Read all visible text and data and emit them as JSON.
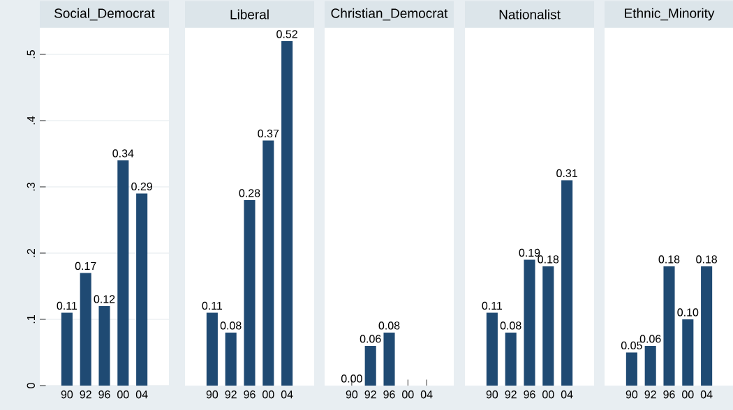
{
  "chart_data": [
    {
      "type": "bar",
      "title": "Social_Democrat",
      "categories": [
        "90",
        "92",
        "96",
        "00",
        "04"
      ],
      "values": [
        0.11,
        0.17,
        0.12,
        0.34,
        0.29
      ],
      "value_labels": [
        "0.11",
        "0.17",
        "0.12",
        "0.34",
        "0.29"
      ],
      "color": "#1f4a73",
      "ylim": [
        0,
        0.54
      ],
      "yticks": [
        0,
        {
          "value": 0.1,
          "label": ".1"
        },
        {
          "value": 0.2,
          "label": ".2"
        },
        {
          "value": 0.3,
          "label": ".3"
        },
        {
          "value": 0.4,
          "label": ".4"
        },
        {
          "value": 0.5,
          "label": ".5"
        }
      ],
      "grid": "y"
    },
    {
      "type": "bar",
      "title": "Liberal",
      "categories": [
        "90",
        "92",
        "96",
        "00",
        "04"
      ],
      "values": [
        0.11,
        0.08,
        0.28,
        0.37,
        0.52
      ],
      "value_labels": [
        "0.11",
        "0.08",
        "0.28",
        "0.37",
        "0.52"
      ],
      "color": "#1f4a73",
      "ylim": [
        0,
        0.54
      ],
      "yticks": [
        {
          "value": 0,
          "label": null
        },
        {
          "value": 0.1,
          "label": null
        },
        {
          "value": 0.2,
          "label": null
        },
        {
          "value": 0.3,
          "label": null
        },
        {
          "value": 0.4,
          "label": null
        },
        {
          "value": 0.5,
          "label": null
        }
      ],
      "grid": "y",
      "tick_labels": "x"
    },
    {
      "type": "bar",
      "title": "Christian_Democrat",
      "categories": [
        "90",
        "92",
        "96",
        "00",
        "04"
      ],
      "values": [
        0,
        0.06,
        0.08,
        null,
        null
      ],
      "value_labels": [
        "0.00",
        "0.06",
        "0.08",
        null,
        null
      ],
      "color": "#1f4a73",
      "ylim": [
        0,
        0.54
      ],
      "yticks": [
        {
          "value": 0,
          "label": null
        },
        {
          "value": 0.1,
          "label": null
        },
        {
          "value": 0.2,
          "label": null
        },
        {
          "value": 0.3,
          "label": null
        },
        {
          "value": 0.4,
          "label": null
        },
        {
          "value": 0.5,
          "label": null
        }
      ],
      "grid": "y",
      "tick_labels": "x"
    },
    {
      "type": "bar",
      "title": "Nationalist",
      "categories": [
        "90",
        "92",
        "96",
        "00",
        "04"
      ],
      "values": [
        0.11,
        0.08,
        0.19,
        0.18,
        0.31
      ],
      "value_labels": [
        "0.11",
        "0.08",
        "0.19",
        "0.18",
        "0.31"
      ],
      "color": "#1f4a73",
      "ylim": [
        0,
        0.54
      ],
      "yticks": [
        {
          "value": 0,
          "label": null
        },
        {
          "value": 0.1,
          "label": null
        },
        {
          "value": 0.2,
          "label": null
        },
        {
          "value": 0.3,
          "label": null
        },
        {
          "value": 0.4,
          "label": null
        },
        {
          "value": 0.5,
          "label": null
        }
      ],
      "grid": "y",
      "tick_labels": "x"
    },
    {
      "type": "bar",
      "title": "Ethnic_Minority",
      "categories": [
        "90",
        "92",
        "96",
        "00",
        "04"
      ],
      "values": [
        0.05,
        0.06,
        0.18,
        0.1,
        0.18
      ],
      "value_labels": [
        "0.05",
        "0.06",
        "0.18",
        "0.10",
        "0.18"
      ],
      "color": "#1f4a73",
      "ylim": [
        0,
        0.54
      ],
      "yticks": [
        {
          "value": 0,
          "label": null
        },
        {
          "value": 0.1,
          "label": null
        },
        {
          "value": 0.2,
          "label": null
        },
        {
          "value": 0.3,
          "label": null
        },
        {
          "value": 0.4,
          "label": null
        },
        {
          "value": 0.5,
          "label": null
        }
      ],
      "grid": "y",
      "tick_labels": "x"
    }
  ]
}
